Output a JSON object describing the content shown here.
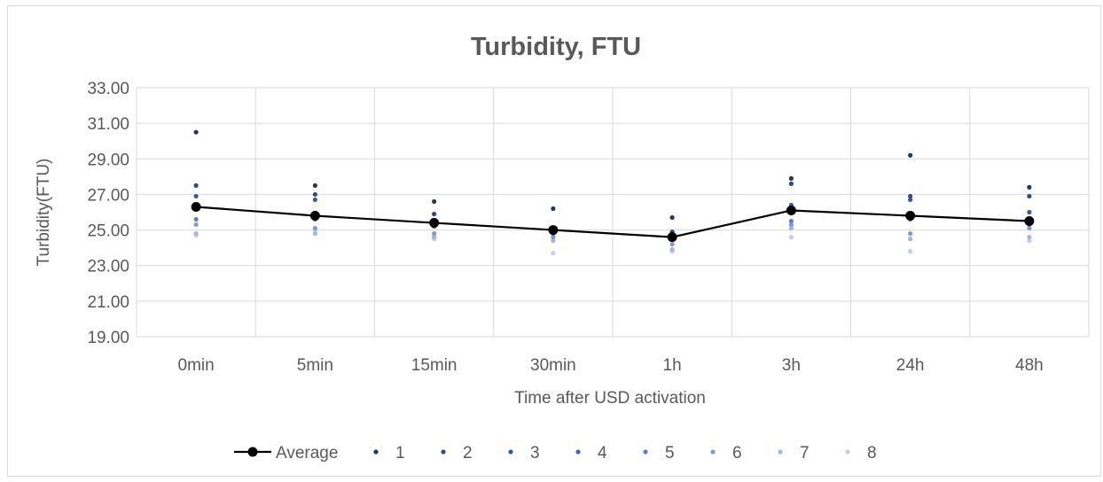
{
  "chart_data": {
    "type": "scatter",
    "title": "Turbidity, FTU",
    "xlabel": "Time after USD activation",
    "ylabel": "Turbidity(FTU)",
    "categories": [
      "0min",
      "5min",
      "15min",
      "30min",
      "1h",
      "3h",
      "24h",
      "48h"
    ],
    "ylim": [
      19,
      33
    ],
    "yticks": [
      "19.00",
      "21.00",
      "23.00",
      "25.00",
      "27.00",
      "29.00",
      "31.00",
      "33.00"
    ],
    "grid": true,
    "legend_position": "bottom",
    "series": [
      {
        "name": "Average",
        "type": "line",
        "color": "#000000",
        "values": [
          26.3,
          25.8,
          25.4,
          25.0,
          24.6,
          26.1,
          25.8,
          25.5
        ]
      },
      {
        "name": "1",
        "type": "scatter",
        "color": "#203864",
        "values": [
          30.5,
          27.5,
          26.6,
          26.2,
          25.7,
          27.9,
          29.2,
          27.4
        ]
      },
      {
        "name": "2",
        "type": "scatter",
        "color": "#2f4b8c",
        "values": [
          27.5,
          27.0,
          25.9,
          25.0,
          24.9,
          27.6,
          26.9,
          26.9
        ]
      },
      {
        "name": "3",
        "type": "scatter",
        "color": "#3558a8",
        "values": [
          26.9,
          26.7,
          25.3,
          24.9,
          24.8,
          26.4,
          26.7,
          26.0
        ]
      },
      {
        "name": "4",
        "type": "scatter",
        "color": "#3f66c1",
        "values": [
          26.4,
          25.8,
          25.2,
          24.8,
          24.5,
          26.0,
          25.8,
          25.6
        ]
      },
      {
        "name": "5",
        "type": "scatter",
        "color": "#5b7fd0",
        "values": [
          25.6,
          25.6,
          25.4,
          25.0,
          24.7,
          25.5,
          25.6,
          25.3
        ]
      },
      {
        "name": "6",
        "type": "scatter",
        "color": "#7e99d8",
        "values": [
          25.3,
          25.1,
          24.8,
          24.6,
          24.2,
          25.3,
          24.8,
          25.1
        ]
      },
      {
        "name": "7",
        "type": "scatter",
        "color": "#a3b4e0",
        "values": [
          24.8,
          24.8,
          24.6,
          24.4,
          23.9,
          25.1,
          24.5,
          24.6
        ]
      },
      {
        "name": "8",
        "type": "scatter",
        "color": "#c3cceb",
        "values": [
          24.7,
          25.0,
          24.5,
          23.7,
          23.8,
          24.6,
          23.8,
          24.4
        ]
      }
    ]
  }
}
